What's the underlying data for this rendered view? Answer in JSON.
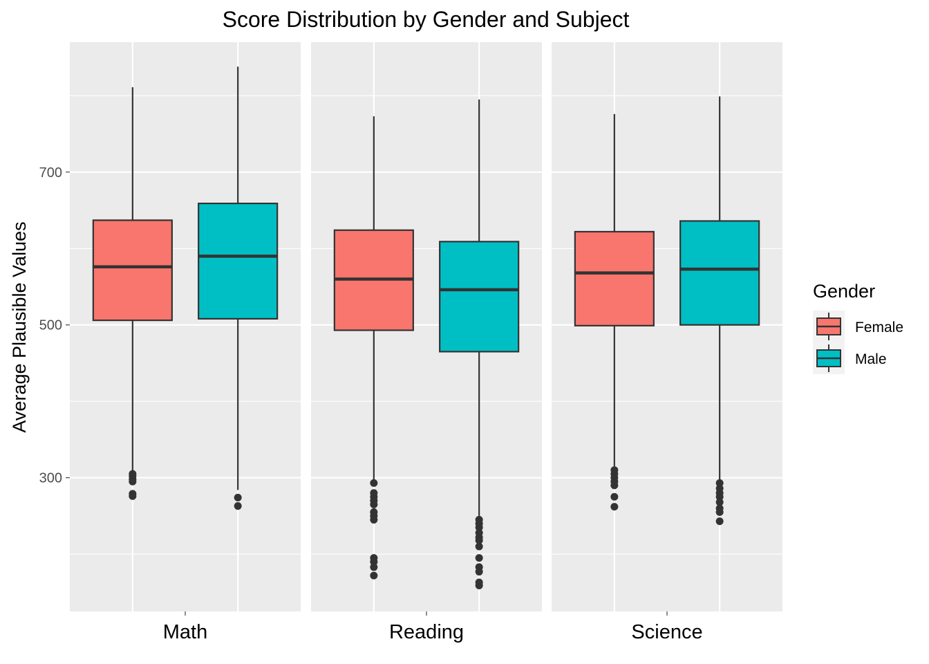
{
  "chart_data": {
    "type": "boxplot",
    "title": "Score Distribution by Gender and Subject",
    "xlabel": "",
    "ylabel": "Average Plausible Values",
    "ylim": [
      125,
      870
    ],
    "yticks": [
      300,
      500,
      700
    ],
    "grid": true,
    "legend": {
      "title": "Gender",
      "placement": "right",
      "entries": [
        {
          "name": "Female",
          "color": "#F8766D"
        },
        {
          "name": "Male",
          "color": "#00BFC4"
        }
      ]
    },
    "facets": [
      {
        "label": "Math",
        "boxes": [
          {
            "group": "Female",
            "whisker_low": 309,
            "q1": 506,
            "median": 576,
            "q3": 637,
            "whisker_high": 811,
            "outliers": [
              305,
              302,
              298,
              295,
              279,
              276
            ]
          },
          {
            "group": "Male",
            "whisker_low": 284,
            "q1": 508,
            "median": 590,
            "q3": 659,
            "whisker_high": 838,
            "outliers": [
              274,
              263
            ]
          }
        ]
      },
      {
        "label": "Reading",
        "boxes": [
          {
            "group": "Female",
            "whisker_low": 297,
            "q1": 493,
            "median": 560,
            "q3": 624,
            "whisker_high": 773,
            "outliers": [
              293,
              280,
              275,
              270,
              265,
              255,
              250,
              245,
              195,
              190,
              183,
              172
            ]
          },
          {
            "group": "Male",
            "whisker_low": 250,
            "q1": 465,
            "median": 546,
            "q3": 609,
            "whisker_high": 795,
            "outliers": [
              245,
              240,
              235,
              228,
              222,
              218,
              210,
              195,
              183,
              177,
              163,
              159
            ]
          }
        ]
      },
      {
        "label": "Science",
        "boxes": [
          {
            "group": "Female",
            "whisker_low": 315,
            "q1": 499,
            "median": 568,
            "q3": 622,
            "whisker_high": 776,
            "outliers": [
              310,
              305,
              300,
              295,
              290,
              275,
              262
            ]
          },
          {
            "group": "Male",
            "whisker_low": 297,
            "q1": 500,
            "median": 573,
            "q3": 636,
            "whisker_high": 799,
            "outliers": [
              293,
              286,
              280,
              275,
              268,
              260,
              255,
              243
            ]
          }
        ]
      }
    ]
  }
}
